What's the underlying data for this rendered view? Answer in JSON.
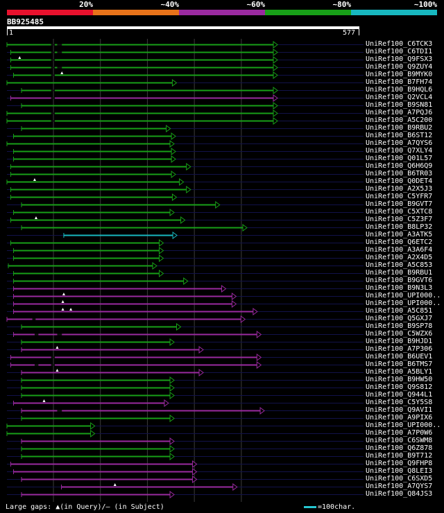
{
  "legend": {
    "labels": [
      "20%",
      "~40%",
      "~60%",
      "~80%",
      "~100%"
    ],
    "colors": [
      "#e8112d",
      "#e8731a",
      "#9a2aa0",
      "#18a018",
      "#18b8c0"
    ]
  },
  "query": {
    "id": "BB925485",
    "start": "1",
    "end": "577",
    "length": 577
  },
  "hits": [
    {
      "name": "UniRef100_C6TCK3",
      "cls": 3,
      "s": 1,
      "e": 577,
      "gaps": [
        [
          95,
          103
        ],
        [
          108,
          118
        ]
      ]
    },
    {
      "name": "UniRef100_C6TDI1",
      "cls": 3,
      "s": 9,
      "e": 577,
      "gaps": [
        [
          95,
          103
        ],
        [
          108,
          118
        ]
      ]
    },
    {
      "name": "UniRef100_Q9FSX3",
      "cls": 3,
      "s": 9,
      "e": 577,
      "gaps": [
        [
          95,
          103
        ]
      ],
      "tri": [
        28
      ]
    },
    {
      "name": "UniRef100_Q9ZUY4",
      "cls": 3,
      "s": 9,
      "e": 577,
      "gaps": [
        [
          95,
          103
        ],
        [
          108,
          118
        ]
      ]
    },
    {
      "name": "UniRef100_B9MYK0",
      "cls": 3,
      "s": 15,
      "e": 577,
      "gaps": [
        [
          95,
          103
        ]
      ],
      "tri": [
        118
      ]
    },
    {
      "name": "UniRef100_B7FH74",
      "cls": 3,
      "s": 1,
      "e": 362,
      "gaps": []
    },
    {
      "name": "UniRef100_B9HQL6",
      "cls": 3,
      "s": 32,
      "e": 577,
      "gaps": [
        [
          95,
          103
        ]
      ]
    },
    {
      "name": "UniRef100_Q2VCL4",
      "cls": 2,
      "s": 9,
      "e": 577,
      "gaps": [
        [
          95,
          103
        ]
      ]
    },
    {
      "name": "UniRef100_B9SN81",
      "cls": 3,
      "s": 32,
      "e": 577,
      "gaps": []
    },
    {
      "name": "UniRef100_A7PQJ6",
      "cls": 3,
      "s": 1,
      "e": 577,
      "gaps": [
        [
          95,
          103
        ]
      ]
    },
    {
      "name": "UniRef100_A5C200",
      "cls": 3,
      "s": 1,
      "e": 577,
      "gaps": [
        [
          95,
          103
        ]
      ]
    },
    {
      "name": "UniRef100_B9RBU2",
      "cls": 3,
      "s": 32,
      "e": 349,
      "gaps": []
    },
    {
      "name": "UniRef100_B6ST12",
      "cls": 3,
      "s": 15,
      "e": 360,
      "gaps": []
    },
    {
      "name": "UniRef100_A7QYS6",
      "cls": 3,
      "s": 1,
      "e": 357,
      "gaps": []
    },
    {
      "name": "UniRef100_Q7XLY4",
      "cls": 3,
      "s": 15,
      "e": 360,
      "gaps": []
    },
    {
      "name": "UniRef100_Q01L57",
      "cls": 3,
      "s": 15,
      "e": 360,
      "gaps": []
    },
    {
      "name": "UniRef100_Q6H6Q9",
      "cls": 3,
      "s": 9,
      "e": 392,
      "gaps": []
    },
    {
      "name": "UniRef100_B6TR03",
      "cls": 3,
      "s": 9,
      "e": 360,
      "gaps": []
    },
    {
      "name": "UniRef100_Q0DET4",
      "cls": 3,
      "s": 1,
      "e": 377,
      "gaps": [],
      "tri": [
        60
      ]
    },
    {
      "name": "UniRef100_A2X5J3",
      "cls": 3,
      "s": 9,
      "e": 392,
      "gaps": []
    },
    {
      "name": "UniRef100_C5YFR7",
      "cls": 3,
      "s": 9,
      "e": 362,
      "gaps": []
    },
    {
      "name": "UniRef100_B9GVT7",
      "cls": 3,
      "s": 32,
      "e": 454,
      "gaps": []
    },
    {
      "name": "UniRef100_C5XTC8",
      "cls": 3,
      "s": 15,
      "e": 357,
      "gaps": []
    },
    {
      "name": "UniRef100_C5Z3F7",
      "cls": 3,
      "s": 9,
      "e": 380,
      "gaps": [],
      "tri": [
        63
      ]
    },
    {
      "name": "UniRef100_B8LP32",
      "cls": 3,
      "s": 32,
      "e": 512,
      "gaps": []
    },
    {
      "name": "UniRef100_A3ATK5",
      "cls": 4,
      "s": 122,
      "e": 363,
      "gaps": []
    },
    {
      "name": "UniRef100_Q6ETC2",
      "cls": 3,
      "s": 9,
      "e": 334,
      "gaps": []
    },
    {
      "name": "UniRef100_A3A6F4",
      "cls": 3,
      "s": 15,
      "e": 334,
      "gaps": []
    },
    {
      "name": "UniRef100_A2X4D5",
      "cls": 3,
      "s": 15,
      "e": 334,
      "gaps": []
    },
    {
      "name": "UniRef100_A5C853",
      "cls": 3,
      "s": 4,
      "e": 320,
      "gaps": []
    },
    {
      "name": "UniRef100_B9RBU1",
      "cls": 3,
      "s": 15,
      "e": 334,
      "gaps": []
    },
    {
      "name": "UniRef100_B9GVT6",
      "cls": 3,
      "s": 15,
      "e": 386,
      "gaps": []
    },
    {
      "name": "UniRef100_B9N3L3",
      "cls": 2,
      "s": 15,
      "e": 467,
      "gaps": []
    },
    {
      "name": "UniRef100_UPI000..",
      "cls": 2,
      "s": 15,
      "e": 489,
      "gaps": [],
      "tri": [
        122
      ]
    },
    {
      "name": "UniRef100_UPI000..",
      "cls": 2,
      "s": 15,
      "e": 489,
      "gaps": [],
      "tri": [
        120
      ]
    },
    {
      "name": "UniRef100_A5C851",
      "cls": 2,
      "s": 15,
      "e": 534,
      "gaps": [],
      "tri": [
        120,
        137
      ]
    },
    {
      "name": "UniRef100_Q5GXJ7",
      "cls": 2,
      "s": 1,
      "e": 508,
      "gaps": [
        [
          55,
          62
        ]
      ]
    },
    {
      "name": "UniRef100_B9SP78",
      "cls": 3,
      "s": 32,
      "e": 371,
      "gaps": []
    },
    {
      "name": "UniRef100_C5WZX6",
      "cls": 2,
      "s": 15,
      "e": 542,
      "gaps": [
        [
          60,
          68
        ],
        [
          108,
          118
        ]
      ]
    },
    {
      "name": "UniRef100_B9HJD1",
      "cls": 3,
      "s": 32,
      "e": 357,
      "gaps": []
    },
    {
      "name": "UniRef100_A7P306",
      "cls": 2,
      "s": 32,
      "e": 419,
      "gaps": [],
      "tri": [
        108
      ]
    },
    {
      "name": "UniRef100_B6UEV1",
      "cls": 2,
      "s": 9,
      "e": 542,
      "gaps": [
        [
          95,
          103
        ]
      ]
    },
    {
      "name": "UniRef100_B6TMS7",
      "cls": 2,
      "s": 9,
      "e": 542,
      "gaps": [
        [
          60,
          68
        ],
        [
          95,
          103
        ]
      ]
    },
    {
      "name": "UniRef100_A5BLY1",
      "cls": 2,
      "s": 32,
      "e": 419,
      "gaps": [],
      "tri": [
        108
      ]
    },
    {
      "name": "UniRef100_B9HW50",
      "cls": 3,
      "s": 32,
      "e": 357,
      "gaps": []
    },
    {
      "name": "UniRef100_Q9S812",
      "cls": 3,
      "s": 32,
      "e": 357,
      "gaps": []
    },
    {
      "name": "UniRef100_Q944L1",
      "cls": 3,
      "s": 32,
      "e": 357,
      "gaps": []
    },
    {
      "name": "UniRef100_C5Y5S8",
      "cls": 2,
      "s": 15,
      "e": 345,
      "gaps": [],
      "tri": [
        80
      ]
    },
    {
      "name": "UniRef100_Q9AVI1",
      "cls": 2,
      "s": 32,
      "e": 549,
      "gaps": [
        [
          108,
          118
        ]
      ]
    },
    {
      "name": "UniRef100_A9PIX6",
      "cls": 3,
      "s": 32,
      "e": 357,
      "gaps": []
    },
    {
      "name": "UniRef100_UPI000..",
      "cls": 3,
      "s": 1,
      "e": 188,
      "gaps": []
    },
    {
      "name": "UniRef100_A7P0W6",
      "cls": 3,
      "s": 1,
      "e": 188,
      "gaps": []
    },
    {
      "name": "UniRef100_C6SWM8",
      "cls": 2,
      "s": 32,
      "e": 357,
      "gaps": []
    },
    {
      "name": "UniRef100_Q6Z878",
      "cls": 3,
      "s": 32,
      "e": 357,
      "gaps": []
    },
    {
      "name": "UniRef100_B9T712",
      "cls": 3,
      "s": 32,
      "e": 357,
      "gaps": []
    },
    {
      "name": "UniRef100_Q9FHP8",
      "cls": 2,
      "s": 9,
      "e": 405,
      "gaps": []
    },
    {
      "name": "UniRef100_Q8LEI3",
      "cls": 2,
      "s": 15,
      "e": 405,
      "gaps": []
    },
    {
      "name": "UniRef100_C6SXD5",
      "cls": 2,
      "s": 32,
      "e": 405,
      "gaps": []
    },
    {
      "name": "UniRef100_A7QYS7",
      "cls": 2,
      "s": 117,
      "e": 491,
      "gaps": [],
      "tri": [
        231
      ]
    },
    {
      "name": "UniRef100_Q84JS3",
      "cls": 2,
      "s": 32,
      "e": 357,
      "gaps": []
    }
  ],
  "footer": {
    "text": "Large gaps: ▲(in Query)/– (in Subject)",
    "scale": "=100char."
  }
}
